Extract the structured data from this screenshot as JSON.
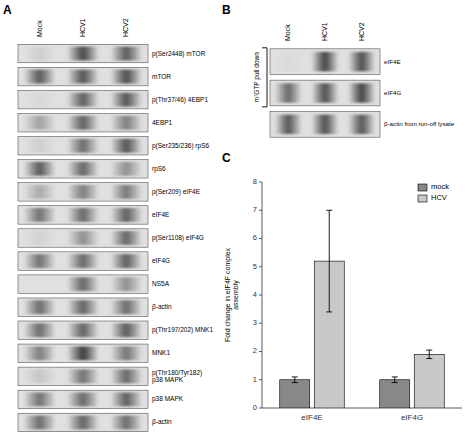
{
  "chart_data": [
    {
      "type": "blot",
      "title": "A",
      "x": [
        "Mock",
        "HCV1",
        "HCV2"
      ],
      "y": [
        "p(Ser2448) mTOR",
        "mTOR",
        "p(Thr37/46) 4EBP1",
        "4EBP1",
        "p(Ser235/236) rpS6",
        "rpS6",
        "p(Ser209) eIF4E",
        "eIF4E",
        "p(Ser1108) eIF4G",
        "eIF4G",
        "NS5A",
        "β-actin",
        "p(Thr197/202) MNK1",
        "MNK1",
        "p(Thr180/Tyr182)\np38 MAPK",
        "p38 MAPK",
        "β-actin"
      ],
      "cells": [
        [
          0.1,
          0.85,
          0.75
        ],
        [
          0.75,
          0.78,
          0.82
        ],
        [
          0.05,
          0.72,
          0.78
        ],
        [
          0.35,
          0.72,
          0.55
        ],
        [
          0.1,
          0.65,
          0.78
        ],
        [
          0.75,
          0.68,
          0.45
        ],
        [
          0.3,
          0.55,
          0.58
        ],
        [
          0.62,
          0.67,
          0.72
        ],
        [
          0.08,
          0.45,
          0.68
        ],
        [
          0.62,
          0.67,
          0.72
        ],
        [
          0.0,
          0.68,
          0.45
        ],
        [
          0.65,
          0.7,
          0.65
        ],
        [
          0.65,
          0.7,
          0.75
        ],
        [
          0.55,
          0.92,
          0.6
        ],
        [
          0.15,
          0.62,
          0.68
        ],
        [
          0.62,
          0.67,
          0.72
        ],
        [
          0.65,
          0.7,
          0.65
        ]
      ]
    },
    {
      "type": "blot",
      "title": "B",
      "x": [
        "Mock",
        "HCV1",
        "HCV2"
      ],
      "y": [
        "eIF4E",
        "eIF4G",
        "β-actin from run-off lysate"
      ],
      "cells": [
        [
          0.04,
          0.88,
          0.82
        ],
        [
          0.68,
          0.82,
          0.88
        ],
        [
          0.78,
          0.82,
          0.78
        ]
      ],
      "annotation": "m⁷GTP pull down"
    },
    {
      "type": "bar",
      "title": "C",
      "categories": [
        "eIF4E",
        "eIF4G"
      ],
      "series": [
        {
          "name": "mock",
          "color": "#888888",
          "values": [
            1.0,
            1.0
          ],
          "errors": [
            0.1,
            0.1
          ]
        },
        {
          "name": "HCV",
          "color": "#c8c8c8",
          "values": [
            5.2,
            1.9
          ],
          "errors": [
            1.8,
            0.15
          ]
        }
      ],
      "y_label": "Fold change in eIF4F complex\nassembly",
      "ylim": [
        0,
        8
      ],
      "yticks": [
        0,
        1,
        2,
        3,
        4,
        5,
        6,
        7,
        8
      ],
      "legend": "upper right"
    }
  ]
}
